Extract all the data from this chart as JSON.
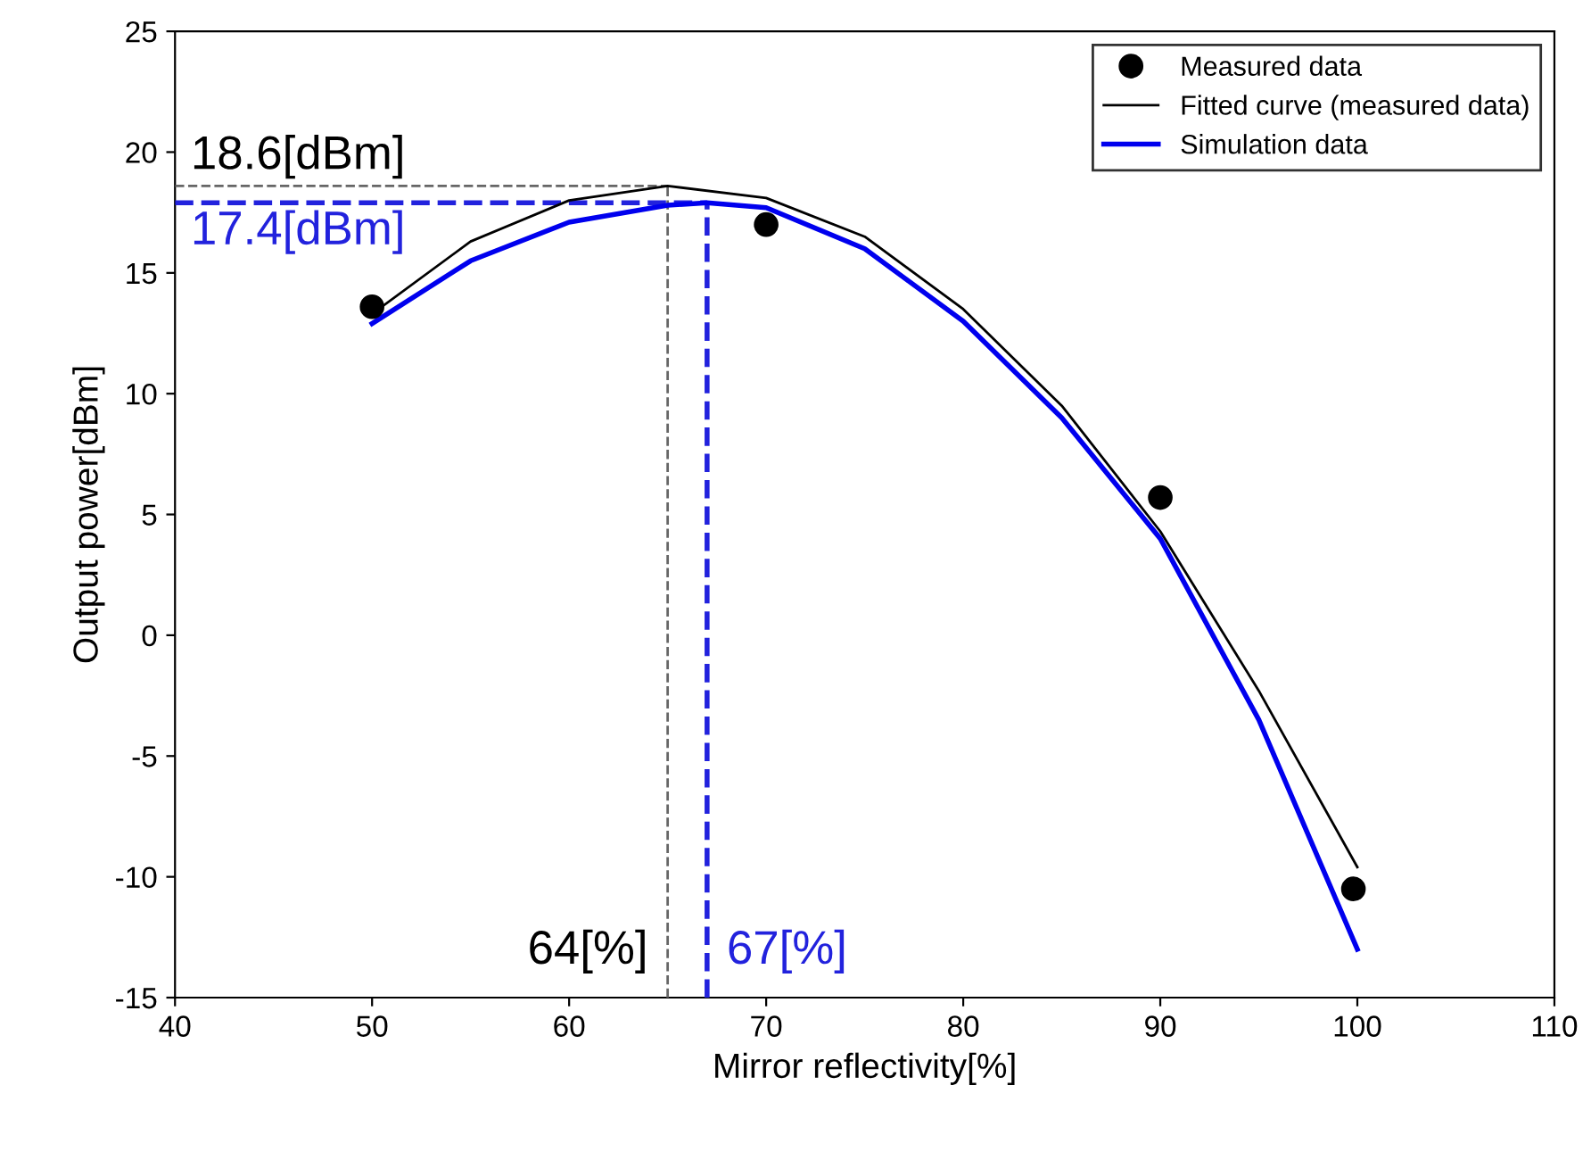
{
  "chart_data": {
    "type": "line",
    "xlabel": "Mirror reflectivity[%]",
    "ylabel": "Output power[dBm]",
    "xlim": [
      40,
      110
    ],
    "xticks": [
      40,
      50,
      60,
      70,
      80,
      90,
      100,
      110
    ],
    "ylim": [
      -15,
      25
    ],
    "yticks": [
      -15,
      -10,
      -5,
      0,
      5,
      10,
      15,
      20,
      25
    ],
    "grid": false,
    "legend": "top right",
    "series": [
      {
        "name": "Measured data",
        "type": "scatter",
        "marker": "circle",
        "color": "#000000",
        "x": [
          50,
          70,
          90,
          99.8
        ],
        "values": [
          13.6,
          17.0,
          5.7,
          -10.5
        ]
      },
      {
        "name": "Fitted curve (measured data)",
        "color": "#000000",
        "x": [
          50,
          55,
          60,
          65,
          70,
          75,
          80,
          85,
          90,
          95,
          100
        ],
        "values": [
          13.3,
          16.3,
          18.0,
          18.6,
          18.1,
          16.5,
          13.5,
          9.5,
          4.3,
          -2.3,
          -9.6
        ]
      },
      {
        "name": "Simulation data",
        "color": "#0000ee",
        "x": [
          50,
          55,
          60,
          65,
          67,
          70,
          75,
          80,
          85,
          90,
          95,
          100
        ],
        "values": [
          12.9,
          15.5,
          17.1,
          17.8,
          17.9,
          17.7,
          16.0,
          13.0,
          9.0,
          4.0,
          -3.5,
          -13.0
        ]
      }
    ],
    "ref_lines": [
      {
        "axis": "y",
        "value": 18.6,
        "color": "#666666",
        "line_style": "dashed"
      },
      {
        "axis": "y",
        "value": 17.9,
        "color": "#2222dd",
        "line_style": "dashed"
      },
      {
        "axis": "x",
        "value": 65,
        "color": "#666666",
        "line_style": "dashed"
      },
      {
        "axis": "x",
        "value": 67,
        "color": "#2222dd",
        "line_style": "dashed"
      }
    ],
    "annotations": [
      "18.6[dBm]",
      "17.4[dBm]",
      "64[%]",
      "67[%]"
    ]
  }
}
